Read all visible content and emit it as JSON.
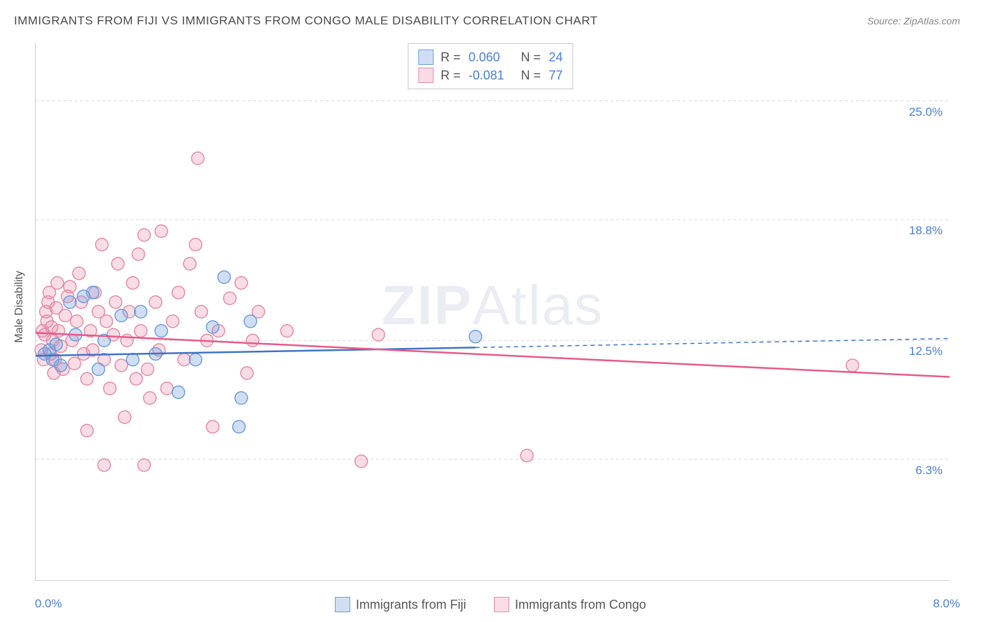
{
  "title": "IMMIGRANTS FROM FIJI VS IMMIGRANTS FROM CONGO MALE DISABILITY CORRELATION CHART",
  "source": "Source: ZipAtlas.com",
  "watermark": {
    "part1": "ZIP",
    "part2": "Atlas"
  },
  "chart": {
    "type": "scatter",
    "y_axis_label": "Male Disability",
    "xlim": [
      0.0,
      8.0
    ],
    "ylim": [
      0.0,
      28.0
    ],
    "x_ticks": [
      {
        "value": 0.0,
        "label": "0.0%"
      },
      {
        "value": 8.0,
        "label": "8.0%"
      }
    ],
    "y_gridlines": [
      {
        "value": 6.3,
        "label": "6.3%"
      },
      {
        "value": 12.5,
        "label": "12.5%"
      },
      {
        "value": 18.8,
        "label": "18.8%"
      },
      {
        "value": 25.0,
        "label": "25.0%"
      }
    ],
    "background_color": "#ffffff",
    "grid_color": "#d8d8d8",
    "marker_radius": 9,
    "marker_stroke_width": 1.5,
    "trend_line_width": 2.5,
    "series": [
      {
        "name": "Immigrants from Fiji",
        "marker_fill": "rgba(120,160,220,0.35)",
        "marker_stroke": "#6a9de0",
        "line_color": "#3f74c9",
        "R": "0.060",
        "N": "24",
        "trend": {
          "x1": 0.0,
          "y1": 11.7,
          "x2": 8.0,
          "y2": 12.6,
          "solid_until_x": 3.85
        },
        "points": [
          [
            0.08,
            11.8
          ],
          [
            0.12,
            12.0
          ],
          [
            0.15,
            11.5
          ],
          [
            0.18,
            12.3
          ],
          [
            0.22,
            11.2
          ],
          [
            0.3,
            14.5
          ],
          [
            0.35,
            12.8
          ],
          [
            0.42,
            14.8
          ],
          [
            0.5,
            15.0
          ],
          [
            0.55,
            11.0
          ],
          [
            0.6,
            12.5
          ],
          [
            0.75,
            13.8
          ],
          [
            0.85,
            11.5
          ],
          [
            0.92,
            14.0
          ],
          [
            1.05,
            11.8
          ],
          [
            1.1,
            13.0
          ],
          [
            1.25,
            9.8
          ],
          [
            1.4,
            11.5
          ],
          [
            1.55,
            13.2
          ],
          [
            1.65,
            15.8
          ],
          [
            1.78,
            8.0
          ],
          [
            1.8,
            9.5
          ],
          [
            1.88,
            13.5
          ],
          [
            3.85,
            12.7
          ]
        ]
      },
      {
        "name": "Immigrants from Congo",
        "marker_fill": "rgba(235,140,170,0.3)",
        "marker_stroke": "#e38ca8",
        "line_color": "#e65a8a",
        "R": "-0.081",
        "N": "77",
        "trend": {
          "x1": 0.0,
          "y1": 12.9,
          "x2": 8.0,
          "y2": 10.6,
          "solid_until_x": 8.0
        },
        "points": [
          [
            0.05,
            12.0
          ],
          [
            0.06,
            13.0
          ],
          [
            0.07,
            11.5
          ],
          [
            0.08,
            12.8
          ],
          [
            0.09,
            14.0
          ],
          [
            0.1,
            13.5
          ],
          [
            0.11,
            14.5
          ],
          [
            0.12,
            15.0
          ],
          [
            0.13,
            11.8
          ],
          [
            0.14,
            13.2
          ],
          [
            0.15,
            12.5
          ],
          [
            0.16,
            10.8
          ],
          [
            0.17,
            11.5
          ],
          [
            0.18,
            14.2
          ],
          [
            0.19,
            15.5
          ],
          [
            0.2,
            13.0
          ],
          [
            0.22,
            12.2
          ],
          [
            0.24,
            11.0
          ],
          [
            0.26,
            13.8
          ],
          [
            0.28,
            14.8
          ],
          [
            0.3,
            15.3
          ],
          [
            0.32,
            12.5
          ],
          [
            0.34,
            11.3
          ],
          [
            0.36,
            13.5
          ],
          [
            0.38,
            16.0
          ],
          [
            0.4,
            14.5
          ],
          [
            0.42,
            11.8
          ],
          [
            0.45,
            10.5
          ],
          [
            0.48,
            13.0
          ],
          [
            0.5,
            12.0
          ],
          [
            0.52,
            15.0
          ],
          [
            0.55,
            14.0
          ],
          [
            0.58,
            17.5
          ],
          [
            0.6,
            11.5
          ],
          [
            0.62,
            13.5
          ],
          [
            0.65,
            10.0
          ],
          [
            0.68,
            12.8
          ],
          [
            0.7,
            14.5
          ],
          [
            0.72,
            16.5
          ],
          [
            0.75,
            11.2
          ],
          [
            0.78,
            8.5
          ],
          [
            0.8,
            12.5
          ],
          [
            0.82,
            14.0
          ],
          [
            0.85,
            15.5
          ],
          [
            0.88,
            10.5
          ],
          [
            0.9,
            17.0
          ],
          [
            0.92,
            13.0
          ],
          [
            0.95,
            18.0
          ],
          [
            0.98,
            11.0
          ],
          [
            1.0,
            9.5
          ],
          [
            1.05,
            14.5
          ],
          [
            1.08,
            12.0
          ],
          [
            1.1,
            18.2
          ],
          [
            1.15,
            10.0
          ],
          [
            1.2,
            13.5
          ],
          [
            1.25,
            15.0
          ],
          [
            1.3,
            11.5
          ],
          [
            1.35,
            16.5
          ],
          [
            1.4,
            17.5
          ],
          [
            1.42,
            22.0
          ],
          [
            1.45,
            14.0
          ],
          [
            1.5,
            12.5
          ],
          [
            1.55,
            8.0
          ],
          [
            1.6,
            13.0
          ],
          [
            1.7,
            14.7
          ],
          [
            1.8,
            15.5
          ],
          [
            1.85,
            10.8
          ],
          [
            1.9,
            12.5
          ],
          [
            1.95,
            14.0
          ],
          [
            2.2,
            13.0
          ],
          [
            0.6,
            6.0
          ],
          [
            0.95,
            6.0
          ],
          [
            3.0,
            12.8
          ],
          [
            2.85,
            6.2
          ],
          [
            4.3,
            6.5
          ],
          [
            7.15,
            11.2
          ],
          [
            0.45,
            7.8
          ]
        ]
      }
    ]
  },
  "legend_labels": {
    "R": "R =",
    "N": "N ="
  }
}
